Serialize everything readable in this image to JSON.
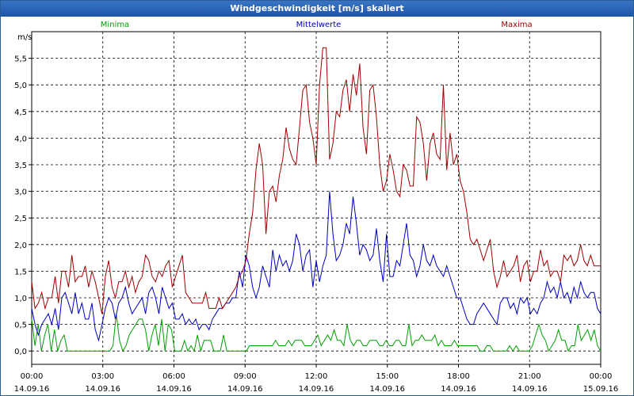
{
  "window": {
    "title": "Windgeschwindigkeit [m/s] skaliert"
  },
  "chart_data": {
    "type": "line",
    "title": "Windgeschwindigkeit [m/s] skaliert",
    "ylabel": "m/s",
    "xlabel": "",
    "ylim": [
      -0.25,
      6.0
    ],
    "y_ticks": [
      "0,0",
      "0,5",
      "1,0",
      "1,5",
      "2,0",
      "2,5",
      "3,0",
      "3,5",
      "4,0",
      "4,5",
      "5,0",
      "5,5"
    ],
    "x_ticks": [
      {
        "time": "00:00",
        "date": "14.09.16"
      },
      {
        "time": "03:00",
        "date": "14.09.16"
      },
      {
        "time": "06:00",
        "date": "14.09.16"
      },
      {
        "time": "09:00",
        "date": "14.09.16"
      },
      {
        "time": "12:00",
        "date": "14.09.16"
      },
      {
        "time": "15:00",
        "date": "14.09.16"
      },
      {
        "time": "18:00",
        "date": "14.09.16"
      },
      {
        "time": "21:00",
        "date": "14.09.16"
      },
      {
        "time": "00:00",
        "date": "15.09.16"
      }
    ],
    "x_range_hours": [
      0,
      24
    ],
    "grid": true,
    "series": [
      {
        "name": "Minima",
        "color": "#00a000",
        "values": [
          0.6,
          0.1,
          0.5,
          0.0,
          0.3,
          0.5,
          0.0,
          0.4,
          0.0,
          0.2,
          0.3,
          0.0,
          0.0,
          0.0,
          0.0,
          0.0,
          0.0,
          0.0,
          0.0,
          0.0,
          0.0,
          0.0,
          0.0,
          0.0,
          0.0,
          0.1,
          0.7,
          0.2,
          0.0,
          0.1,
          0.3,
          0.4,
          0.5,
          0.6,
          0.6,
          0.4,
          0.0,
          0.3,
          0.5,
          0.1,
          0.6,
          0.0,
          0.5,
          0.4,
          0.0,
          0.0,
          0.0,
          0.2,
          0.0,
          0.1,
          0.0,
          0.3,
          0.0,
          0.2,
          0.2,
          0.2,
          0.0,
          0.0,
          0.0,
          0.3,
          0.0,
          0.0,
          0.0,
          0.0,
          0.0,
          0.0,
          0.0,
          0.1,
          0.1,
          0.1,
          0.1,
          0.1,
          0.1,
          0.1,
          0.1,
          0.2,
          0.1,
          0.1,
          0.1,
          0.2,
          0.1,
          0.2,
          0.2,
          0.2,
          0.1,
          0.1,
          0.1,
          0.2,
          0.3,
          0.1,
          0.2,
          0.3,
          0.2,
          0.4,
          0.2,
          0.2,
          0.1,
          0.5,
          0.2,
          0.1,
          0.2,
          0.2,
          0.1,
          0.1,
          0.2,
          0.2,
          0.2,
          0.1,
          0.1,
          0.2,
          0.1,
          0.1,
          0.2,
          0.2,
          0.1,
          0.1,
          0.5,
          0.1,
          0.2,
          0.2,
          0.3,
          0.2,
          0.2,
          0.2,
          0.3,
          0.1,
          0.2,
          0.1,
          0.1,
          0.1,
          0.2,
          0.1,
          0.1,
          0.1,
          0.1,
          0.1,
          0.1,
          0.1,
          0.0,
          0.0,
          0.1,
          0.1,
          0.0,
          0.0,
          0.0,
          0.0,
          0.0,
          0.1,
          0.0,
          0.1,
          0.0,
          0.0,
          0.0,
          0.0,
          0.1,
          0.3,
          0.5,
          0.3,
          0.2,
          0.0,
          0.1,
          0.2,
          0.4,
          0.2,
          0.2,
          0.0,
          0.1,
          0.1,
          0.5,
          0.2,
          0.3,
          0.4,
          0.2,
          0.4,
          0.1,
          0.0
        ]
      },
      {
        "name": "Mittelwerte",
        "color": "#0000c0",
        "values": [
          0.8,
          0.5,
          0.3,
          0.5,
          0.6,
          0.7,
          0.5,
          0.8,
          0.4,
          1.0,
          1.1,
          0.9,
          0.7,
          1.1,
          0.7,
          0.9,
          0.6,
          0.6,
          0.9,
          0.4,
          0.2,
          0.5,
          0.8,
          1.0,
          0.9,
          0.6,
          0.9,
          1.0,
          1.2,
          0.9,
          0.7,
          0.8,
          0.9,
          1.0,
          0.7,
          1.1,
          1.2,
          1.0,
          0.7,
          1.2,
          1.0,
          0.8,
          0.9,
          0.6,
          0.6,
          0.7,
          0.5,
          0.6,
          0.5,
          0.6,
          0.4,
          0.5,
          0.5,
          0.4,
          0.6,
          0.7,
          0.8,
          0.8,
          0.9,
          0.9,
          1.0,
          1.0,
          1.5,
          1.2,
          1.8,
          1.6,
          1.2,
          1.0,
          1.2,
          1.6,
          1.4,
          1.2,
          1.9,
          1.5,
          1.8,
          1.6,
          1.7,
          1.5,
          1.7,
          2.2,
          2.0,
          1.5,
          1.8,
          1.9,
          1.2,
          1.7,
          1.3,
          1.6,
          1.8,
          3.0,
          2.2,
          1.7,
          1.8,
          2.0,
          2.4,
          2.2,
          2.9,
          2.4,
          1.8,
          2.0,
          1.9,
          1.7,
          1.8,
          2.3,
          1.7,
          1.3,
          2.2,
          1.4,
          1.4,
          1.7,
          1.6,
          2.0,
          2.4,
          1.8,
          1.7,
          1.4,
          1.6,
          2.0,
          1.7,
          1.6,
          1.8,
          1.6,
          1.5,
          1.4,
          1.6,
          1.4,
          1.2,
          1.0,
          1.0,
          0.8,
          0.6,
          0.5,
          0.5,
          0.7,
          0.8,
          0.9,
          0.8,
          0.7,
          0.6,
          0.5,
          0.9,
          1.0,
          1.0,
          0.8,
          0.9,
          0.7,
          1.0,
          0.9,
          1.0,
          0.7,
          0.8,
          0.7,
          0.9,
          1.0,
          1.3,
          1.1,
          1.2,
          1.0,
          1.3,
          1.0,
          1.1,
          0.9,
          1.2,
          1.0,
          1.3,
          1.1,
          1.0,
          1.1,
          1.1,
          0.8,
          0.7
        ]
      },
      {
        "name": "Maxima",
        "color": "#a00000",
        "values": [
          1.3,
          0.8,
          0.9,
          1.1,
          0.8,
          1.0,
          1.0,
          1.4,
          0.9,
          1.5,
          1.5,
          1.2,
          1.8,
          1.3,
          1.4,
          1.4,
          1.6,
          1.2,
          1.5,
          1.3,
          1.0,
          0.7,
          1.4,
          1.7,
          1.2,
          1.0,
          1.3,
          1.3,
          1.5,
          1.2,
          1.4,
          1.1,
          1.3,
          1.4,
          1.8,
          1.7,
          1.4,
          1.3,
          1.5,
          1.4,
          1.6,
          1.7,
          1.2,
          1.4,
          1.6,
          1.8,
          1.1,
          1.0,
          0.9,
          0.9,
          0.9,
          0.9,
          1.1,
          0.8,
          0.8,
          0.8,
          1.0,
          0.8,
          0.9,
          1.0,
          1.1,
          1.2,
          1.4,
          1.5,
          1.7,
          2.2,
          2.6,
          3.4,
          3.9,
          3.5,
          2.2,
          3.0,
          3.1,
          2.8,
          3.3,
          3.6,
          4.2,
          3.8,
          3.6,
          3.5,
          4.2,
          4.9,
          5.0,
          4.3,
          4.0,
          3.5,
          5.0,
          5.7,
          5.7,
          3.6,
          3.9,
          4.5,
          4.4,
          4.9,
          5.1,
          4.5,
          5.2,
          4.8,
          5.4,
          4.2,
          3.7,
          4.9,
          5.0,
          4.4,
          3.5,
          3.0,
          3.2,
          3.7,
          3.4,
          3.0,
          2.9,
          3.5,
          3.4,
          3.1,
          3.1,
          4.4,
          4.3,
          3.9,
          3.2,
          3.9,
          4.1,
          3.7,
          3.6,
          5.0,
          3.4,
          4.1,
          3.5,
          3.7,
          3.2,
          3.0,
          2.6,
          2.1,
          2.0,
          2.1,
          1.9,
          1.7,
          1.9,
          2.1,
          1.5,
          1.2,
          1.4,
          1.7,
          1.4,
          1.5,
          1.6,
          1.8,
          1.3,
          1.6,
          1.7,
          1.3,
          1.5,
          1.5,
          1.9,
          1.6,
          1.7,
          1.4,
          1.5,
          1.5,
          1.3,
          1.8,
          1.7,
          1.8,
          1.6,
          1.7,
          2.0,
          1.7,
          1.6,
          1.8,
          1.6,
          1.6,
          1.6
        ]
      }
    ]
  }
}
